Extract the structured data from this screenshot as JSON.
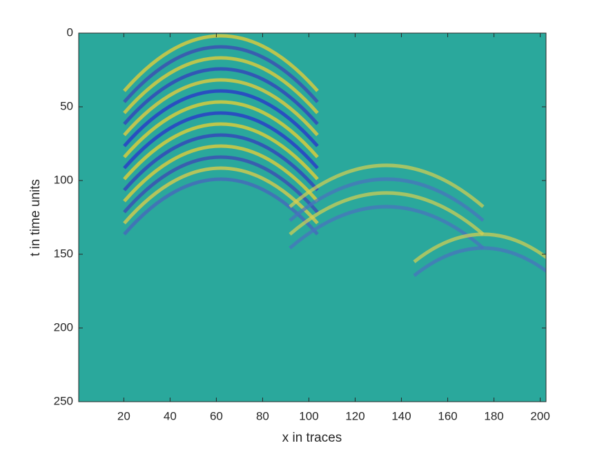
{
  "chart_data": {
    "type": "image",
    "xlabel": "x in traces",
    "ylabel": "t in time units",
    "xlim": [
      0.5,
      202.5
    ],
    "ylim": [
      0,
      250
    ],
    "y_reversed": true,
    "xticks": [
      20,
      40,
      60,
      80,
      100,
      120,
      140,
      160,
      180,
      200
    ],
    "yticks": [
      0,
      50,
      100,
      150,
      200,
      250
    ],
    "color": "#2aa89c"
  }
}
